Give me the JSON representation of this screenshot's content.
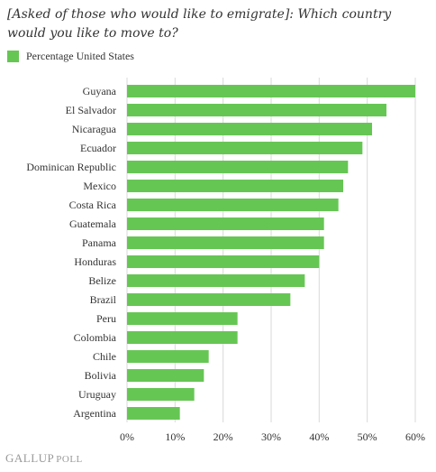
{
  "chart_data": {
    "type": "bar",
    "orientation": "horizontal",
    "title": "[Asked of those who would like to emigrate]: Which country would you like to move to?",
    "categories": [
      "Guyana",
      "El Salvador",
      "Nicaragua",
      "Ecuador",
      "Dominican Republic",
      "Mexico",
      "Costa Rica",
      "Guatemala",
      "Panama",
      "Honduras",
      "Belize",
      "Brazil",
      "Peru",
      "Colombia",
      "Chile",
      "Bolivia",
      "Uruguay",
      "Argentina"
    ],
    "series": [
      {
        "name": "Percentage United States",
        "color": "#66c654",
        "values": [
          60,
          54,
          51,
          49,
          46,
          45,
          44,
          41,
          41,
          40,
          37,
          34,
          23,
          23,
          17,
          16,
          14,
          11
        ]
      }
    ],
    "xlim": [
      0,
      60
    ],
    "xticks": [
      0,
      10,
      20,
      30,
      40,
      50,
      60
    ],
    "xtick_labels": [
      "0%",
      "10%",
      "20%",
      "30%",
      "40%",
      "50%",
      "60%"
    ],
    "grid": "vertical",
    "legend_position": "top-left"
  },
  "footer": {
    "brand_primary": "GALLUP",
    "brand_secondary": "POLL"
  }
}
